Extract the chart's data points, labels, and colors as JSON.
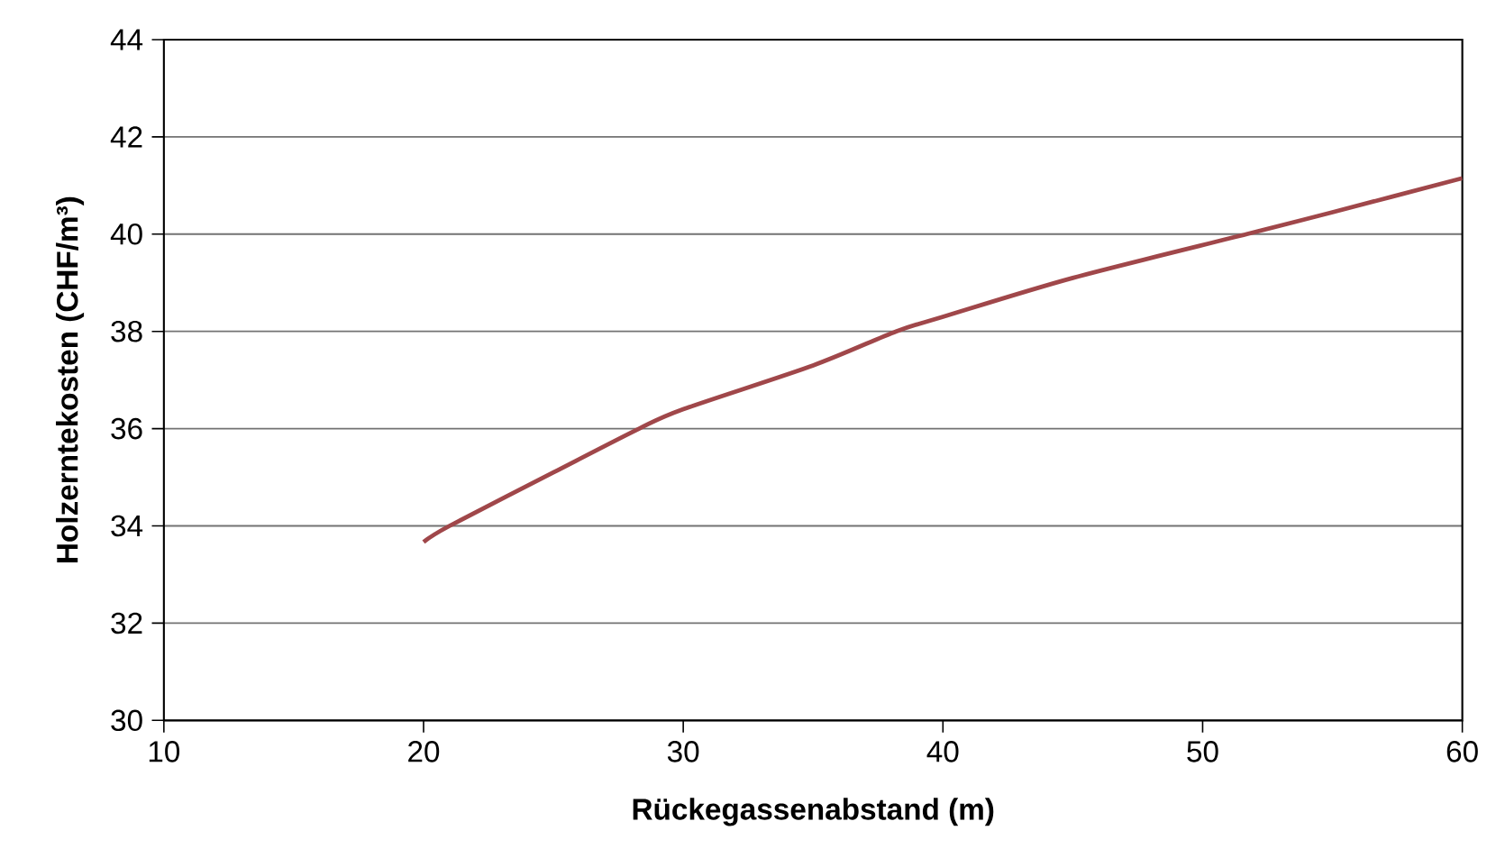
{
  "chart_data": {
    "type": "line",
    "xlabel": "Rückegassenabstand (m)",
    "ylabel": "Holzerntekosten (CHF/m³)",
    "x": [
      20,
      21,
      25,
      28.3,
      30,
      35,
      38.2,
      40,
      45,
      51.7,
      55,
      60
    ],
    "series": [
      {
        "color": "#a0474a",
        "values": [
          33.67,
          34,
          35.1,
          36,
          36.4,
          37.3,
          38,
          38.3,
          39.1,
          40,
          40.45,
          41.15
        ]
      }
    ],
    "xlim": [
      10,
      60
    ],
    "ylim": [
      30,
      44
    ],
    "xticks": [
      10,
      20,
      30,
      40,
      50,
      60
    ],
    "yticks": [
      30,
      32,
      34,
      36,
      38,
      40,
      42,
      44
    ],
    "grid": "y",
    "marker": "none",
    "line_style": "solid"
  }
}
